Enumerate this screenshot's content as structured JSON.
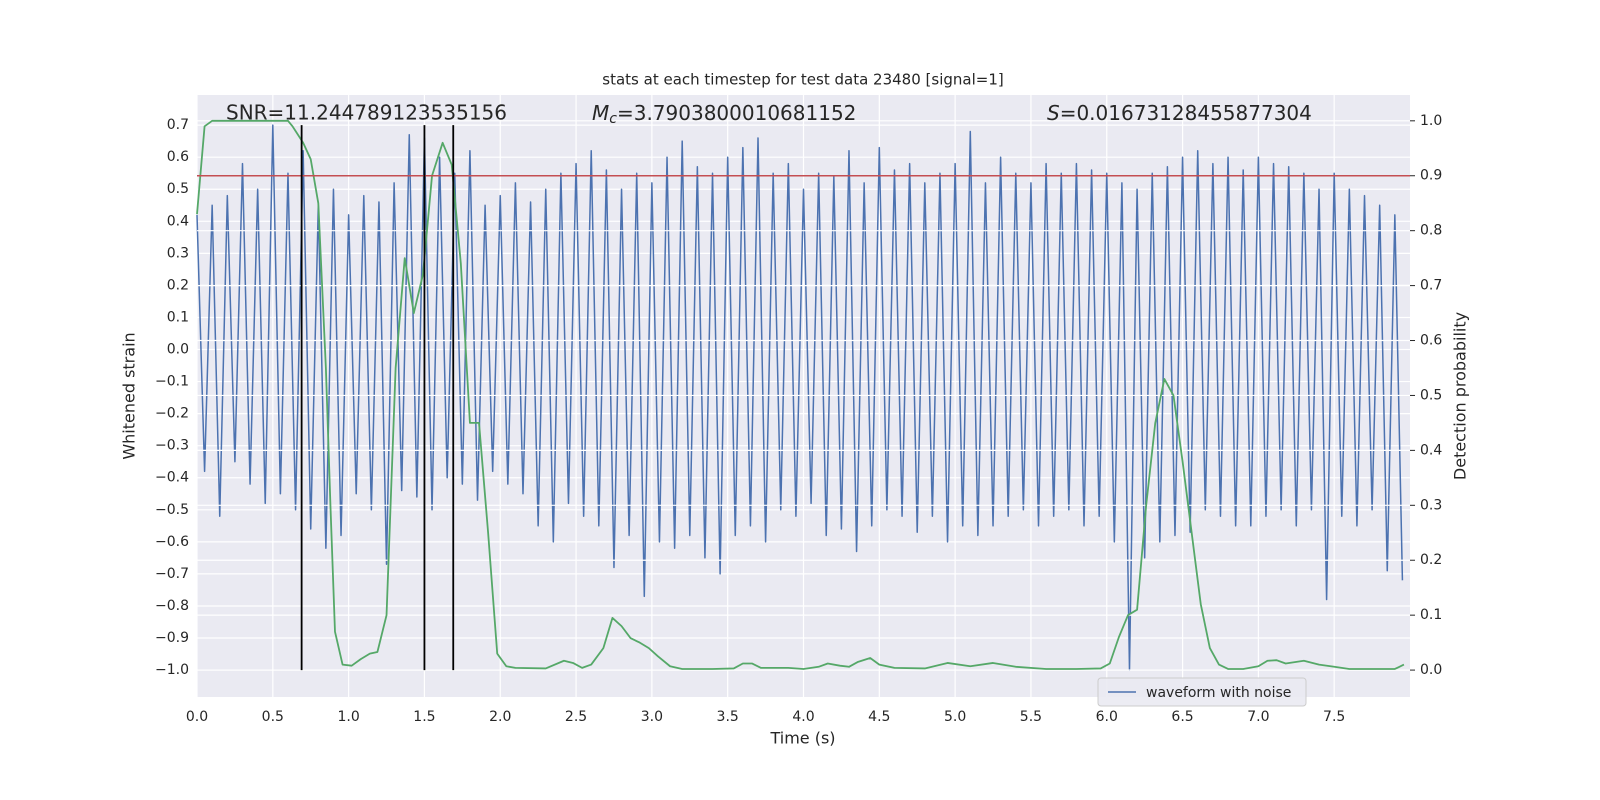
{
  "chart_data": {
    "type": "line",
    "title": "stats at each timestep for test data 23480 [signal=1]",
    "xlabel": "Time (s)",
    "ylabel": "Whitened strain",
    "y2label": "Detection probability",
    "annotations": [
      "SNR=11.244789123535156",
      {
        "italic": "M",
        "sub": "c",
        "rest": "=3.7903800010681152"
      },
      {
        "italic": "S",
        "rest": "=0.01673128455877304"
      }
    ],
    "xlim": [
      0,
      8
    ],
    "ylim": [
      -1.084,
      0.794
    ],
    "y2lim": [
      -0.049,
      1.047
    ],
    "xticks": [
      {
        "value": 0,
        "label": "0.0"
      },
      0.5,
      {
        "value": 1,
        "label": "1.0"
      },
      1.5,
      {
        "value": 2,
        "label": "2.0"
      },
      2.5,
      {
        "value": 3,
        "label": "3.0"
      },
      3.5,
      {
        "value": 4,
        "label": "4.0"
      },
      4.5,
      {
        "value": 5,
        "label": "5.0"
      },
      5.5,
      {
        "value": 6,
        "label": "6.0"
      },
      6.5,
      {
        "value": 7,
        "label": "7.0"
      },
      7.5
    ],
    "yticks": [
      {
        "value": -1,
        "label": "−1.0"
      },
      {
        "value": -0.9,
        "label": "−0.9"
      },
      {
        "value": -0.8,
        "label": "−0.8"
      },
      {
        "value": -0.7,
        "label": "−0.7"
      },
      {
        "value": -0.6,
        "label": "−0.6"
      },
      {
        "value": -0.5,
        "label": "−0.5"
      },
      {
        "value": -0.4,
        "label": "−0.4"
      },
      {
        "value": -0.3,
        "label": "−0.3"
      },
      {
        "value": -0.2,
        "label": "−0.2"
      },
      {
        "value": -0.1,
        "label": "−0.1"
      },
      {
        "value": 0,
        "label": "0.0"
      },
      0.1,
      0.2,
      0.3,
      0.4,
      0.5,
      0.6,
      0.7
    ],
    "y2ticks": [
      {
        "value": 0,
        "label": "0.0"
      },
      0.1,
      0.2,
      0.3,
      0.4,
      0.5,
      0.6,
      0.7,
      0.8,
      0.9,
      {
        "value": 1,
        "label": "1.0"
      }
    ],
    "grid": true,
    "legend": "lower right",
    "hlines": [
      {
        "value": 0.9,
        "axis": "y2",
        "color": "#c44e52"
      }
    ],
    "vlines": {
      "values": [
        0.69,
        1.5,
        1.69
      ],
      "color": "#000000"
    },
    "series": [
      {
        "name": "waveform with noise",
        "color": "#4c72b0",
        "x": [
          0,
          0.05,
          0.1,
          0.15,
          0.2,
          0.25,
          0.3,
          0.35,
          0.4,
          0.45,
          0.5,
          0.55,
          0.6,
          0.65,
          0.7,
          0.75,
          0.8,
          0.85,
          0.9,
          0.95,
          1,
          1.05,
          1.1,
          1.15,
          1.2,
          1.25,
          1.3,
          1.35,
          1.4,
          1.45,
          1.5,
          1.55,
          1.6,
          1.65,
          1.7,
          1.75,
          1.8,
          1.85,
          1.9,
          1.95,
          2,
          2.05,
          2.1,
          2.15,
          2.2,
          2.25,
          2.3,
          2.35,
          2.4,
          2.45,
          2.5,
          2.55,
          2.6,
          2.65,
          2.7,
          2.75,
          2.8,
          2.85,
          2.9,
          2.95,
          3,
          3.05,
          3.1,
          3.15,
          3.2,
          3.25,
          3.3,
          3.35,
          3.4,
          3.45,
          3.5,
          3.55,
          3.6,
          3.65,
          3.7,
          3.75,
          3.8,
          3.85,
          3.9,
          3.95,
          4,
          4.05,
          4.1,
          4.15,
          4.2,
          4.25,
          4.3,
          4.35,
          4.4,
          4.45,
          4.5,
          4.55,
          4.6,
          4.65,
          4.7,
          4.75,
          4.8,
          4.85,
          4.9,
          4.95,
          5,
          5.05,
          5.1,
          5.15,
          5.2,
          5.25,
          5.3,
          5.35,
          5.4,
          5.45,
          5.5,
          5.55,
          5.6,
          5.65,
          5.7,
          5.75,
          5.8,
          5.85,
          5.9,
          5.95,
          6,
          6.05,
          6.1,
          6.15,
          6.2,
          6.25,
          6.3,
          6.35,
          6.4,
          6.45,
          6.5,
          6.55,
          6.6,
          6.65,
          6.7,
          6.75,
          6.8,
          6.85,
          6.9,
          6.95,
          7,
          7.05,
          7.1,
          7.15,
          7.2,
          7.25,
          7.3,
          7.35,
          7.4,
          7.45,
          7.5,
          7.55,
          7.6,
          7.65,
          7.7,
          7.75,
          7.8,
          7.85,
          7.9,
          7.95
        ],
        "values": [
          0.42,
          -0.38,
          0.45,
          -0.52,
          0.48,
          -0.35,
          0.58,
          -0.42,
          0.5,
          -0.48,
          0.7,
          -0.45,
          0.55,
          -0.5,
          0.62,
          -0.56,
          0.45,
          -0.62,
          0.5,
          -0.58,
          0.42,
          -0.45,
          0.48,
          -0.5,
          0.46,
          -0.67,
          0.52,
          -0.44,
          0.67,
          -0.46,
          0.66,
          -0.5,
          0.6,
          -0.4,
          0.55,
          -0.42,
          0.62,
          -0.47,
          0.45,
          -0.38,
          0.48,
          -0.42,
          0.52,
          -0.45,
          0.46,
          -0.55,
          0.5,
          -0.6,
          0.55,
          -0.48,
          0.58,
          -0.52,
          0.62,
          -0.55,
          0.56,
          -0.68,
          0.5,
          -0.58,
          0.55,
          -0.77,
          0.52,
          -0.6,
          0.6,
          -0.62,
          0.65,
          -0.58,
          0.57,
          -0.65,
          0.55,
          -0.7,
          0.6,
          -0.58,
          0.63,
          -0.55,
          0.66,
          -0.6,
          0.55,
          -0.5,
          0.58,
          -0.52,
          0.5,
          -0.48,
          0.55,
          -0.58,
          0.54,
          -0.56,
          0.62,
          -0.63,
          0.52,
          -0.55,
          0.63,
          -0.5,
          0.56,
          -0.52,
          0.58,
          -0.57,
          0.52,
          -0.52,
          0.55,
          -0.6,
          0.58,
          -0.55,
          0.68,
          -0.58,
          0.52,
          -0.55,
          0.6,
          -0.52,
          0.55,
          -0.5,
          0.52,
          -0.55,
          0.58,
          -0.52,
          0.55,
          -0.5,
          0.58,
          -0.55,
          0.56,
          -0.52,
          0.55,
          -0.6,
          0.52,
          -1.0,
          0.5,
          -0.65,
          0.55,
          -0.6,
          0.57,
          -0.58,
          0.6,
          -0.57,
          0.62,
          -0.5,
          0.58,
          -0.52,
          0.6,
          -0.55,
          0.56,
          -0.55,
          0.6,
          -0.52,
          0.58,
          -0.5,
          0.57,
          -0.55,
          0.55,
          -0.5,
          0.5,
          -0.78,
          0.55,
          -0.52,
          0.5,
          -0.55,
          0.48,
          -0.5,
          0.45,
          -0.69,
          0.42,
          -0.72
        ]
      },
      {
        "color": "#55a868",
        "axis": "y2",
        "x": [
          0,
          0.05,
          0.1,
          0.2,
          0.3,
          0.4,
          0.5,
          0.6,
          0.63,
          0.7,
          0.75,
          0.8,
          0.85,
          0.88,
          0.91,
          0.96,
          1.02,
          1.08,
          1.14,
          1.19,
          1.25,
          1.31,
          1.37,
          1.43,
          1.49,
          1.55,
          1.62,
          1.68,
          1.74,
          1.8,
          1.86,
          1.92,
          1.98,
          2.04,
          2.1,
          2.3,
          2.42,
          2.48,
          2.54,
          2.6,
          2.68,
          2.74,
          2.8,
          2.86,
          2.92,
          2.98,
          3.04,
          3.12,
          3.2,
          3.4,
          3.54,
          3.6,
          3.66,
          3.72,
          3.9,
          4.0,
          4.1,
          4.16,
          4.24,
          4.3,
          4.36,
          4.44,
          4.5,
          4.6,
          4.8,
          4.95,
          5.1,
          5.25,
          5.4,
          5.6,
          5.8,
          5.96,
          6.02,
          6.08,
          6.14,
          6.2,
          6.26,
          6.32,
          6.38,
          6.44,
          6.5,
          6.56,
          6.62,
          6.68,
          6.74,
          6.8,
          6.9,
          7.0,
          7.06,
          7.12,
          7.18,
          7.3,
          7.4,
          7.5,
          7.6,
          7.9,
          7.96
        ],
        "values": [
          0.83,
          0.99,
          1.0,
          1.0,
          1.0,
          1.0,
          1.0,
          1.0,
          0.99,
          0.96,
          0.93,
          0.85,
          0.55,
          0.3,
          0.07,
          0.01,
          0.008,
          0.02,
          0.03,
          0.033,
          0.1,
          0.55,
          0.75,
          0.65,
          0.72,
          0.9,
          0.96,
          0.92,
          0.74,
          0.45,
          0.45,
          0.25,
          0.03,
          0.007,
          0.004,
          0.003,
          0.017,
          0.013,
          0.004,
          0.01,
          0.04,
          0.095,
          0.08,
          0.058,
          0.05,
          0.04,
          0.025,
          0.007,
          0.002,
          0.002,
          0.003,
          0.012,
          0.012,
          0.004,
          0.004,
          0.002,
          0.006,
          0.012,
          0.008,
          0.006,
          0.015,
          0.022,
          0.01,
          0.004,
          0.003,
          0.013,
          0.007,
          0.013,
          0.006,
          0.002,
          0.002,
          0.003,
          0.012,
          0.06,
          0.1,
          0.11,
          0.3,
          0.45,
          0.53,
          0.5,
          0.38,
          0.25,
          0.12,
          0.04,
          0.01,
          0.002,
          0.002,
          0.007,
          0.017,
          0.018,
          0.012,
          0.017,
          0.01,
          0.006,
          0.002,
          0.002,
          0.01
        ]
      }
    ]
  }
}
